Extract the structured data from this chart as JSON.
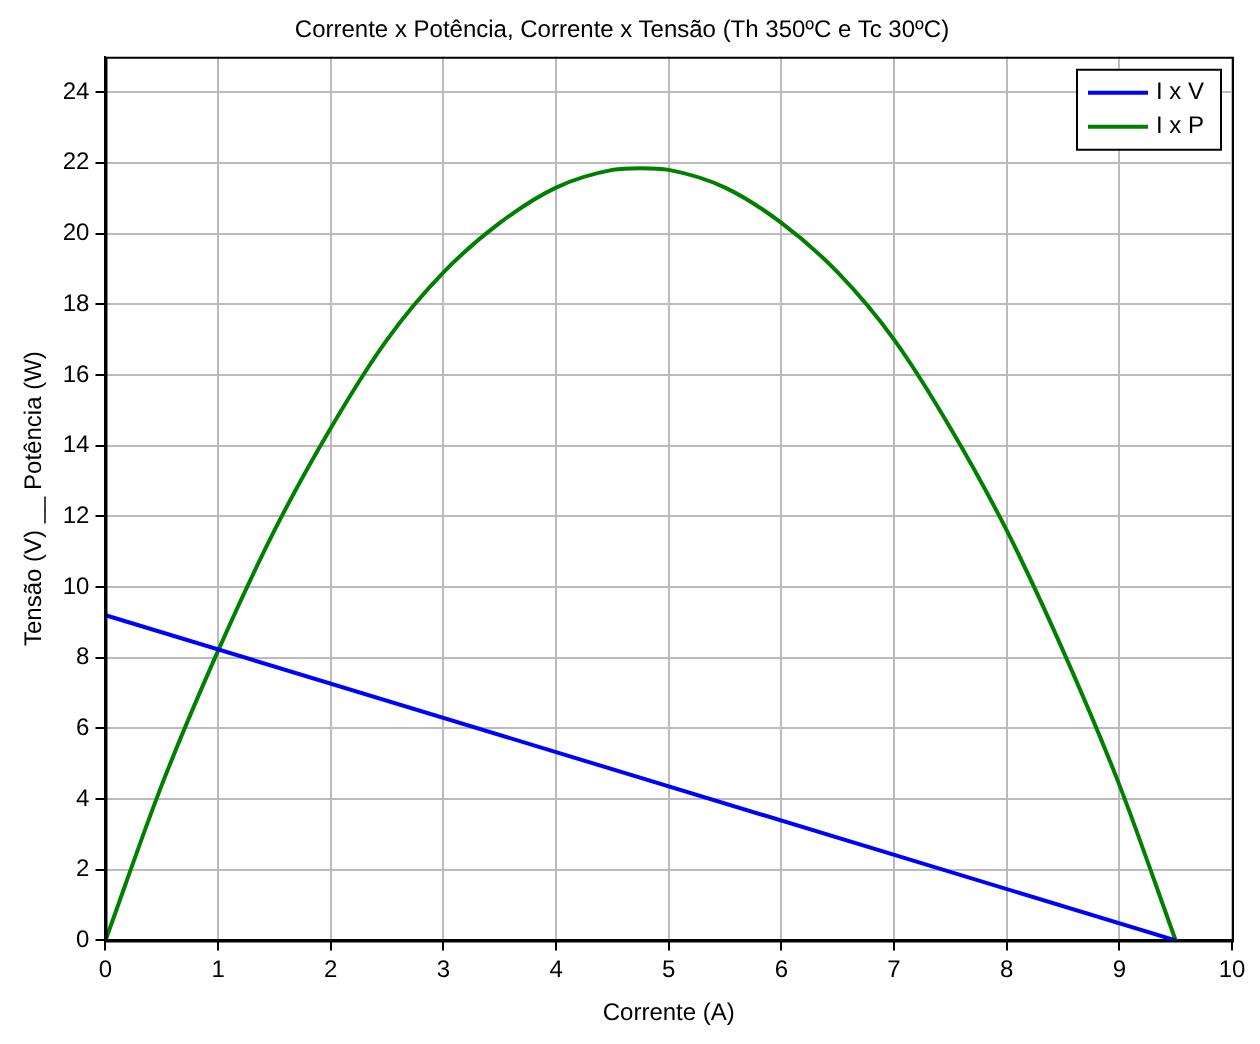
{
  "chart_data": {
    "type": "line",
    "title": "Corrente x Potência, Corrente x Tensão (Th 350ºC e Tc 30ºC)",
    "xlabel": "Corrente (A)",
    "ylabel": "Tensão (V) __ Potência (W)",
    "series": [
      {
        "name": "I x V",
        "color": "#0000ff",
        "x": [
          0,
          9.5
        ],
        "values": [
          9.2,
          0
        ]
      },
      {
        "name": "I x P",
        "color": "#008000",
        "x": [
          0,
          0.5,
          1,
          1.5,
          2,
          2.5,
          3,
          3.5,
          4,
          4.5,
          4.75,
          5,
          5.5,
          6,
          6.5,
          7,
          7.5,
          8,
          8.5,
          9,
          9.5
        ],
        "values": [
          0,
          4.4,
          8.2,
          11.6,
          14.5,
          17,
          18.9,
          20.3,
          21.3,
          21.8,
          21.85,
          21.8,
          21.3,
          20.3,
          18.9,
          17,
          14.5,
          11.6,
          8.2,
          4.4,
          0
        ]
      }
    ],
    "xlim": [
      0,
      10
    ],
    "xticks": [
      0,
      1,
      2,
      3,
      4,
      5,
      6,
      7,
      8,
      9,
      10
    ],
    "ylim": [
      0,
      25
    ],
    "yticks": [
      0,
      2,
      4,
      6,
      8,
      10,
      12,
      14,
      16,
      18,
      20,
      22,
      24
    ],
    "grid": true,
    "legend": "top right",
    "marker": "none",
    "line_style": "solid"
  }
}
